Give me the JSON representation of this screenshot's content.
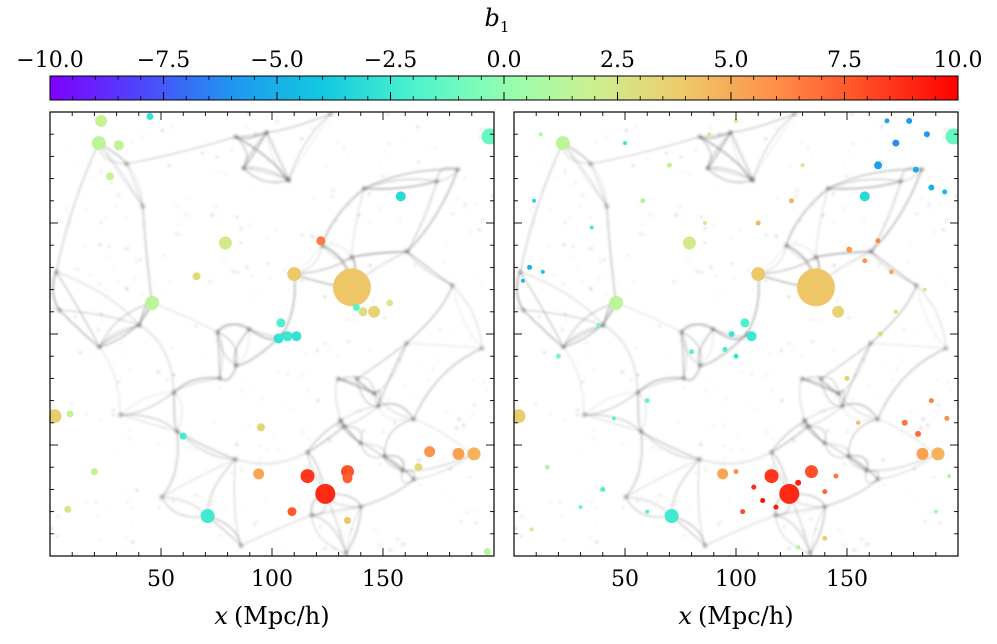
{
  "chart_data": {
    "type": "scatter",
    "colorbar": {
      "label": "b",
      "label_subscript": "1",
      "range": [
        -10,
        10
      ],
      "ticks": [
        -10,
        -7.5,
        -5,
        -2.5,
        0,
        2.5,
        5,
        7.5,
        10
      ],
      "tick_labels": [
        "−10.0",
        "−7.5",
        "−5.0",
        "−2.5",
        "0.0",
        "2.5",
        "5.0",
        "7.5",
        "10.0"
      ],
      "colormap": [
        "#7f00ff",
        "#4f45fc",
        "#1f96f0",
        "#12c9e0",
        "#4cf2ce",
        "#92ffb0",
        "#cdf08f",
        "#eec969",
        "#ff8e48",
        "#ff4a25",
        "#ff0000"
      ]
    },
    "xlabel_var": "x",
    "xlabel_unit": "(Mpc/h)",
    "xlim": [
      0,
      200
    ],
    "ylim": [
      0,
      200
    ],
    "x_ticks": [
      50,
      100,
      150
    ],
    "x_tick_labels": [
      "50",
      "100",
      "150"
    ],
    "background": "dark matter density field (grey filaments)",
    "panels": [
      {
        "name": "left",
        "points": [
          {
            "x": 136,
            "y": 121,
            "size": 19,
            "b1": 4.1
          },
          {
            "x": 124,
            "y": 28,
            "size": 10,
            "b1": 8.9
          },
          {
            "x": 116,
            "y": 36,
            "size": 7,
            "b1": 8.6
          },
          {
            "x": 134,
            "y": 38,
            "size": 6.5,
            "b1": 7.8
          },
          {
            "x": 134,
            "y": 35,
            "size": 5,
            "b1": 7.4
          },
          {
            "x": 71,
            "y": 18,
            "size": 7,
            "b1": -2.4
          },
          {
            "x": 110,
            "y": 127,
            "size": 7,
            "b1": 4.0
          },
          {
            "x": 198,
            "y": 189,
            "size": 8,
            "b1": -1.2
          },
          {
            "x": 2,
            "y": 63,
            "size": 7,
            "b1": 3.8
          },
          {
            "x": 191,
            "y": 46,
            "size": 6.5,
            "b1": 4.8
          },
          {
            "x": 184,
            "y": 46,
            "size": 6,
            "b1": 5.4
          },
          {
            "x": 171,
            "y": 47,
            "size": 5.5,
            "b1": 5.8
          },
          {
            "x": 94,
            "y": 37,
            "size": 5.5,
            "b1": 5.2
          },
          {
            "x": 46,
            "y": 114,
            "size": 7,
            "b1": 1.4
          },
          {
            "x": 23,
            "y": 196,
            "size": 6,
            "b1": 1.8
          },
          {
            "x": 22,
            "y": 186,
            "size": 7,
            "b1": 1.5
          },
          {
            "x": 31,
            "y": 185,
            "size": 5,
            "b1": 1.6
          },
          {
            "x": 79,
            "y": 141,
            "size": 6.5,
            "b1": 2.3
          },
          {
            "x": 158,
            "y": 162,
            "size": 5,
            "b1": -3.2
          },
          {
            "x": 122,
            "y": 142,
            "size": 4.5,
            "b1": 6.6
          },
          {
            "x": 104,
            "y": 105,
            "size": 4.5,
            "b1": -2.0
          },
          {
            "x": 103,
            "y": 98,
            "size": 5,
            "b1": -2.8
          },
          {
            "x": 107,
            "y": 99,
            "size": 5,
            "b1": -2.6
          },
          {
            "x": 111,
            "y": 99,
            "size": 5,
            "b1": -2.8
          },
          {
            "x": 146,
            "y": 110,
            "size": 6,
            "b1": 3.5
          },
          {
            "x": 141,
            "y": 110,
            "size": 4.5,
            "b1": 2.8
          },
          {
            "x": 66,
            "y": 126,
            "size": 4,
            "b1": 3.2
          },
          {
            "x": 27,
            "y": 171,
            "size": 4,
            "b1": 1.9
          },
          {
            "x": 95,
            "y": 58,
            "size": 4,
            "b1": 3.5
          },
          {
            "x": 166,
            "y": 40,
            "size": 4,
            "b1": 3.0
          },
          {
            "x": 109,
            "y": 20,
            "size": 4.5,
            "b1": 7.5
          },
          {
            "x": 134,
            "y": 16,
            "size": 3.5,
            "b1": 4.2
          },
          {
            "x": 45,
            "y": 198,
            "size": 3.5,
            "b1": -2.8
          },
          {
            "x": 8,
            "y": 21,
            "size": 3.5,
            "b1": 2.6
          },
          {
            "x": 197,
            "y": 2,
            "size": 3.5,
            "b1": 1.2
          },
          {
            "x": 153,
            "y": 114,
            "size": 3.5,
            "b1": 2.2
          },
          {
            "x": 60,
            "y": 54,
            "size": 3.5,
            "b1": -2.2
          },
          {
            "x": 9,
            "y": 64,
            "size": 3.5,
            "b1": 1.7
          },
          {
            "x": 20,
            "y": 38,
            "size": 3.5,
            "b1": 1.6
          },
          {
            "x": 138,
            "y": 112,
            "size": 3.5,
            "b1": -1.8
          }
        ]
      },
      {
        "name": "right",
        "points": [
          {
            "x": 136,
            "y": 121,
            "size": 19,
            "b1": 4.1
          },
          {
            "x": 124,
            "y": 28,
            "size": 10,
            "b1": 8.9
          },
          {
            "x": 116,
            "y": 36,
            "size": 7,
            "b1": 8.6
          },
          {
            "x": 134,
            "y": 38,
            "size": 6.5,
            "b1": 7.8
          },
          {
            "x": 71,
            "y": 18,
            "size": 7,
            "b1": -2.4
          },
          {
            "x": 110,
            "y": 127,
            "size": 7,
            "b1": 4.0
          },
          {
            "x": 198,
            "y": 189,
            "size": 8,
            "b1": -1.2
          },
          {
            "x": 2,
            "y": 63,
            "size": 7,
            "b1": 3.8
          },
          {
            "x": 191,
            "y": 46,
            "size": 6.5,
            "b1": 4.8
          },
          {
            "x": 184,
            "y": 46,
            "size": 6,
            "b1": 5.4
          },
          {
            "x": 94,
            "y": 37,
            "size": 5.5,
            "b1": 5.2
          },
          {
            "x": 46,
            "y": 114,
            "size": 7,
            "b1": 1.4
          },
          {
            "x": 22,
            "y": 186,
            "size": 7,
            "b1": 1.5
          },
          {
            "x": 79,
            "y": 141,
            "size": 6.5,
            "b1": 2.3
          },
          {
            "x": 158,
            "y": 162,
            "size": 5,
            "b1": -3.2
          },
          {
            "x": 104,
            "y": 105,
            "size": 4.5,
            "b1": -2.0
          },
          {
            "x": 107,
            "y": 99,
            "size": 5,
            "b1": -2.6
          },
          {
            "x": 146,
            "y": 110,
            "size": 6,
            "b1": 3.5
          },
          {
            "x": 164,
            "y": 176,
            "size": 4,
            "b1": -5.6
          },
          {
            "x": 172,
            "y": 186,
            "size": 3.5,
            "b1": -6.2
          },
          {
            "x": 178,
            "y": 196,
            "size": 3,
            "b1": -5.8
          },
          {
            "x": 186,
            "y": 190,
            "size": 3,
            "b1": -6.0
          },
          {
            "x": 181,
            "y": 174,
            "size": 3,
            "b1": -5.2
          },
          {
            "x": 188,
            "y": 166,
            "size": 3,
            "b1": -4.8
          },
          {
            "x": 194,
            "y": 164,
            "size": 2.5,
            "b1": -4.6
          },
          {
            "x": 168,
            "y": 196,
            "size": 2.5,
            "b1": -5.4
          },
          {
            "x": 7,
            "y": 130,
            "size": 2.5,
            "b1": -5.0
          },
          {
            "x": 4,
            "y": 124,
            "size": 2,
            "b1": -4.6
          },
          {
            "x": 13,
            "y": 128,
            "size": 2,
            "b1": -4.0
          },
          {
            "x": 9,
            "y": 160,
            "size": 2,
            "b1": -3.2
          },
          {
            "x": 35,
            "y": 148,
            "size": 2,
            "b1": -2.4
          },
          {
            "x": 151,
            "y": 138,
            "size": 3,
            "b1": 5.6
          },
          {
            "x": 158,
            "y": 133,
            "size": 2.5,
            "b1": 5.8
          },
          {
            "x": 164,
            "y": 142,
            "size": 2.5,
            "b1": 6.2
          },
          {
            "x": 170,
            "y": 128,
            "size": 2.5,
            "b1": 5.0
          },
          {
            "x": 176,
            "y": 60,
            "size": 3,
            "b1": 6.8
          },
          {
            "x": 182,
            "y": 55,
            "size": 3,
            "b1": 7.0
          },
          {
            "x": 188,
            "y": 70,
            "size": 2.5,
            "b1": 6.4
          },
          {
            "x": 195,
            "y": 62,
            "size": 2.5,
            "b1": 6.0
          },
          {
            "x": 128,
            "y": 33,
            "size": 3,
            "b1": 9.2
          },
          {
            "x": 112,
            "y": 25,
            "size": 2.5,
            "b1": 9.6
          },
          {
            "x": 118,
            "y": 22,
            "size": 2.5,
            "b1": 9.4
          },
          {
            "x": 108,
            "y": 31,
            "size": 2.5,
            "b1": 8.8
          },
          {
            "x": 103,
            "y": 20,
            "size": 2.5,
            "b1": 8.0
          },
          {
            "x": 140,
            "y": 29,
            "size": 2.5,
            "b1": 7.2
          },
          {
            "x": 145,
            "y": 36,
            "size": 2.5,
            "b1": 6.6
          },
          {
            "x": 100,
            "y": 38,
            "size": 2.5,
            "b1": 6.0
          },
          {
            "x": 98,
            "y": 100,
            "size": 3,
            "b1": -2.6
          },
          {
            "x": 95,
            "y": 93,
            "size": 2.5,
            "b1": -2.2
          },
          {
            "x": 100,
            "y": 90,
            "size": 2.5,
            "b1": -2.8
          },
          {
            "x": 80,
            "y": 92,
            "size": 2.5,
            "b1": -1.8
          },
          {
            "x": 60,
            "y": 70,
            "size": 2.5,
            "b1": -1.4
          },
          {
            "x": 45,
            "y": 62,
            "size": 2,
            "b1": -1.6
          },
          {
            "x": 40,
            "y": 30,
            "size": 2.5,
            "b1": -2.0
          },
          {
            "x": 30,
            "y": 22,
            "size": 2,
            "b1": -1.2
          },
          {
            "x": 15,
            "y": 40,
            "size": 2.5,
            "b1": 0.8
          },
          {
            "x": 8,
            "y": 12,
            "size": 2,
            "b1": 1.8
          },
          {
            "x": 20,
            "y": 90,
            "size": 2.5,
            "b1": -0.8
          },
          {
            "x": 38,
            "y": 104,
            "size": 2,
            "b1": -1.0
          },
          {
            "x": 58,
            "y": 160,
            "size": 2.5,
            "b1": 1.2
          },
          {
            "x": 70,
            "y": 176,
            "size": 2.5,
            "b1": 1.6
          },
          {
            "x": 86,
            "y": 150,
            "size": 2,
            "b1": 2.4
          },
          {
            "x": 110,
            "y": 150,
            "size": 2.5,
            "b1": 4.6
          },
          {
            "x": 125,
            "y": 160,
            "size": 2.5,
            "b1": 4.8
          },
          {
            "x": 130,
            "y": 176,
            "size": 2,
            "b1": 2.2
          },
          {
            "x": 165,
            "y": 100,
            "size": 2.5,
            "b1": 3.2
          },
          {
            "x": 172,
            "y": 110,
            "size": 2,
            "b1": 2.8
          },
          {
            "x": 185,
            "y": 120,
            "size": 2,
            "b1": 1.8
          },
          {
            "x": 150,
            "y": 80,
            "size": 2.5,
            "b1": 3.6
          },
          {
            "x": 155,
            "y": 60,
            "size": 2,
            "b1": 4.4
          },
          {
            "x": 60,
            "y": 20,
            "size": 2,
            "b1": -2.0
          },
          {
            "x": 140,
            "y": 8,
            "size": 2.5,
            "b1": 3.8
          },
          {
            "x": 128,
            "y": 4,
            "size": 2,
            "b1": 1.4
          },
          {
            "x": 190,
            "y": 20,
            "size": 2,
            "b1": 0.6
          },
          {
            "x": 196,
            "y": 36,
            "size": 2,
            "b1": 1.0
          },
          {
            "x": 12,
            "y": 190,
            "size": 2,
            "b1": 0.4
          },
          {
            "x": 50,
            "y": 186,
            "size": 2,
            "b1": -2.6
          },
          {
            "x": 88,
            "y": 190,
            "size": 2,
            "b1": 2.0
          },
          {
            "x": 100,
            "y": 196,
            "size": 2,
            "b1": 2.4
          }
        ]
      }
    ]
  }
}
